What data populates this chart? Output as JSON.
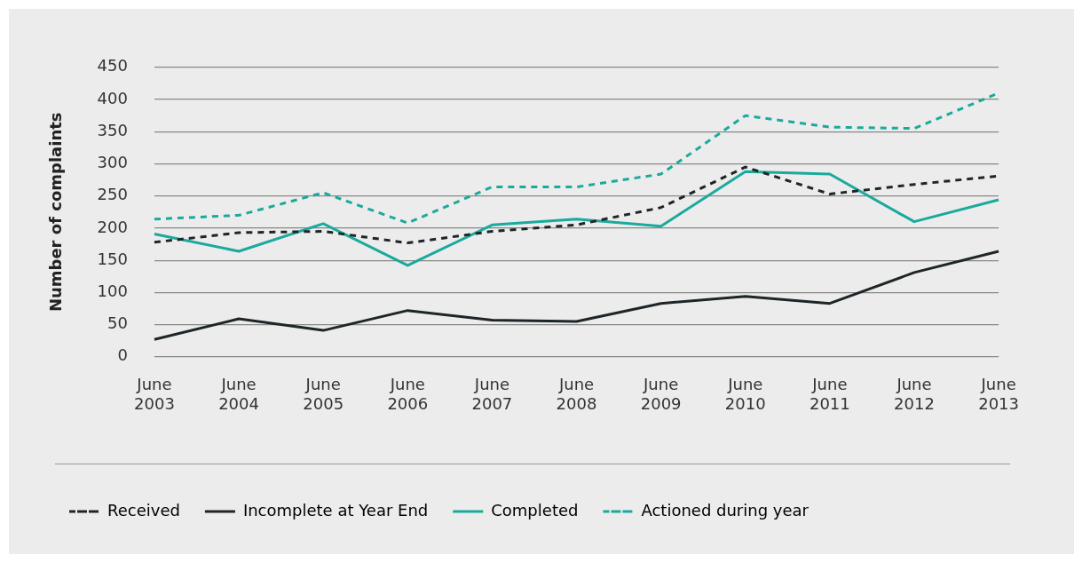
{
  "chart_data": {
    "type": "line",
    "ylabel": "Number of complaints",
    "categories": [
      "June 2003",
      "June 2004",
      "June 2005",
      "June 2006",
      "June 2007",
      "June 2008",
      "June 2009",
      "June 2010",
      "June 2011",
      "June 2012",
      "June 2013"
    ],
    "series": [
      {
        "name": "Received",
        "color": "#1d2528",
        "line_style": "dashed",
        "values": [
          178,
          193,
          195,
          177,
          195,
          205,
          232,
          295,
          253,
          268,
          281
        ]
      },
      {
        "name": "Incomplete at Year End",
        "color": "#1d2528",
        "line_style": "solid",
        "values": [
          27,
          59,
          41,
          72,
          57,
          55,
          83,
          94,
          83,
          131,
          164
        ]
      },
      {
        "name": "Completed",
        "color": "#1aaa9c",
        "line_style": "solid",
        "values": [
          191,
          164,
          207,
          142,
          205,
          214,
          203,
          288,
          284,
          210,
          244
        ]
      },
      {
        "name": "Actioned during year",
        "color": "#1aaa9c",
        "line_style": "dashed",
        "values": [
          214,
          220,
          255,
          208,
          264,
          264,
          284,
          375,
          357,
          355,
          410
        ]
      }
    ],
    "ylim": [
      0,
      450
    ],
    "yticks": [
      0,
      50,
      100,
      150,
      200,
      250,
      300,
      350,
      400,
      450
    ],
    "grid": "y",
    "legend": "bottom",
    "marker": "none"
  }
}
